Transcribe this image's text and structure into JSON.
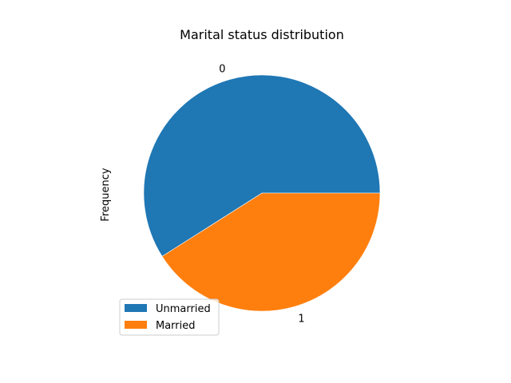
{
  "chart_data": {
    "type": "pie",
    "title": "Marital status distribution",
    "ylabel": "Frequency",
    "categories": [
      "0",
      "1"
    ],
    "values": [
      59,
      41
    ],
    "legend": {
      "placement": "lower-left",
      "entries": [
        "Unmarried",
        "Married"
      ]
    },
    "colors": [
      "#1f77b4",
      "#ff7f0e"
    ],
    "start_angle_deg": 0,
    "direction": "counterclockwise"
  }
}
